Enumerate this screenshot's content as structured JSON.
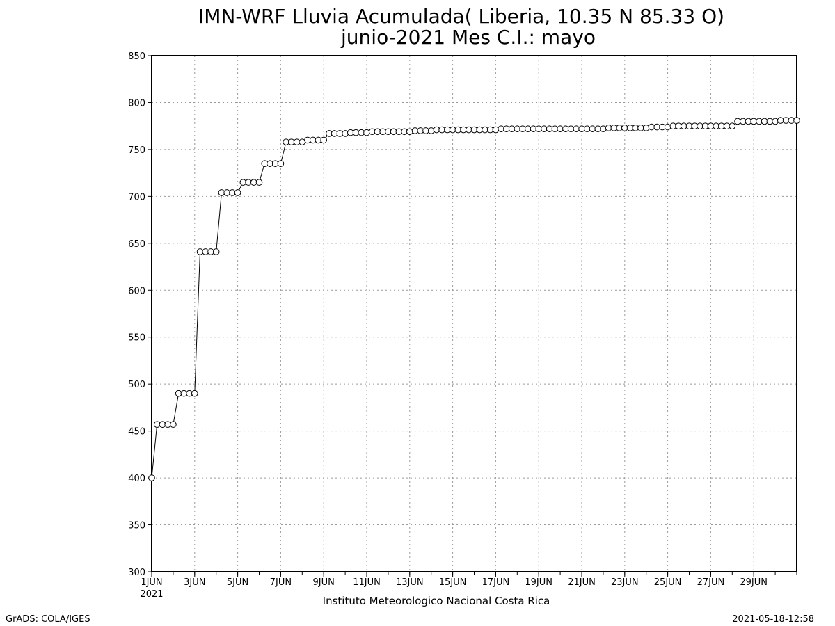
{
  "chart_data": {
    "type": "line",
    "title": "IMN-WRF  Lluvia Acumulada( Liberia, 10.35  N 85.33  O)",
    "subtitle": "junio-2021 Mes C.I.: mayo",
    "xlabel": "",
    "ylabel": "",
    "x_start_label": "1JUN",
    "x_year_label": "2021",
    "x_tick_labels": [
      "1JUN",
      "3JUN",
      "5JUN",
      "7JUN",
      "9JUN",
      "11JUN",
      "13JUN",
      "15JUN",
      "17JUN",
      "19JUN",
      "21JUN",
      "23JUN",
      "25JUN",
      "27JUN",
      "29JUN"
    ],
    "xlim": [
      "2021-06-01 00:00",
      "2021-06-30 24:00"
    ],
    "ylim": [
      300,
      850
    ],
    "y_ticks": [
      300,
      350,
      400,
      450,
      500,
      550,
      600,
      650,
      700,
      750,
      800,
      850
    ],
    "grid": true,
    "marker": "open-circle",
    "series": [
      {
        "x": [
          "2021-06-01 00:00",
          "2021-06-01 06:00",
          "2021-06-01 12:00",
          "2021-06-01 18:00",
          "2021-06-02 00:00",
          "2021-06-02 06:00",
          "2021-06-02 12:00",
          "2021-06-02 18:00",
          "2021-06-03 00:00",
          "2021-06-03 06:00",
          "2021-06-03 12:00",
          "2021-06-03 18:00",
          "2021-06-04 00:00",
          "2021-06-04 06:00",
          "2021-06-04 12:00",
          "2021-06-04 18:00",
          "2021-06-05 00:00",
          "2021-06-05 06:00",
          "2021-06-05 12:00",
          "2021-06-05 18:00",
          "2021-06-06 00:00",
          "2021-06-06 06:00",
          "2021-06-06 12:00",
          "2021-06-06 18:00",
          "2021-06-07 00:00",
          "2021-06-07 06:00",
          "2021-06-07 12:00",
          "2021-06-07 18:00",
          "2021-06-08 00:00",
          "2021-06-08 06:00",
          "2021-06-08 12:00",
          "2021-06-08 18:00",
          "2021-06-09 00:00",
          "2021-06-09 06:00",
          "2021-06-09 12:00",
          "2021-06-09 18:00",
          "2021-06-10 00:00",
          "2021-06-10 06:00",
          "2021-06-10 12:00",
          "2021-06-10 18:00",
          "2021-06-11 00:00",
          "2021-06-11 06:00",
          "2021-06-11 12:00",
          "2021-06-11 18:00",
          "2021-06-12 00:00",
          "2021-06-12 06:00",
          "2021-06-12 12:00",
          "2021-06-12 18:00",
          "2021-06-13 00:00",
          "2021-06-13 06:00",
          "2021-06-13 12:00",
          "2021-06-13 18:00",
          "2021-06-14 00:00",
          "2021-06-14 06:00",
          "2021-06-14 12:00",
          "2021-06-14 18:00",
          "2021-06-15 00:00",
          "2021-06-15 06:00",
          "2021-06-15 12:00",
          "2021-06-15 18:00",
          "2021-06-16 00:00",
          "2021-06-16 06:00",
          "2021-06-16 12:00",
          "2021-06-16 18:00",
          "2021-06-17 00:00",
          "2021-06-17 06:00",
          "2021-06-17 12:00",
          "2021-06-17 18:00",
          "2021-06-18 00:00",
          "2021-06-18 06:00",
          "2021-06-18 12:00",
          "2021-06-18 18:00",
          "2021-06-19 00:00",
          "2021-06-19 06:00",
          "2021-06-19 12:00",
          "2021-06-19 18:00",
          "2021-06-20 00:00",
          "2021-06-20 06:00",
          "2021-06-20 12:00",
          "2021-06-20 18:00",
          "2021-06-21 00:00",
          "2021-06-21 06:00",
          "2021-06-21 12:00",
          "2021-06-21 18:00",
          "2021-06-22 00:00",
          "2021-06-22 06:00",
          "2021-06-22 12:00",
          "2021-06-22 18:00",
          "2021-06-23 00:00",
          "2021-06-23 06:00",
          "2021-06-23 12:00",
          "2021-06-23 18:00",
          "2021-06-24 00:00",
          "2021-06-24 06:00",
          "2021-06-24 12:00",
          "2021-06-24 18:00",
          "2021-06-25 00:00",
          "2021-06-25 06:00",
          "2021-06-25 12:00",
          "2021-06-25 18:00",
          "2021-06-26 00:00",
          "2021-06-26 06:00",
          "2021-06-26 12:00",
          "2021-06-26 18:00",
          "2021-06-27 00:00",
          "2021-06-27 06:00",
          "2021-06-27 12:00",
          "2021-06-27 18:00",
          "2021-06-28 00:00",
          "2021-06-28 06:00",
          "2021-06-28 12:00",
          "2021-06-28 18:00",
          "2021-06-29 00:00",
          "2021-06-29 06:00",
          "2021-06-29 12:00",
          "2021-06-29 18:00",
          "2021-06-30 00:00",
          "2021-06-30 06:00",
          "2021-06-30 12:00",
          "2021-06-30 18:00",
          "2021-06-30 24:00"
        ],
        "values": [
          400,
          457,
          457,
          457,
          457,
          490,
          490,
          490,
          490,
          641,
          641,
          641,
          641,
          704,
          704,
          704,
          704,
          715,
          715,
          715,
          715,
          735,
          735,
          735,
          735,
          758,
          758,
          758,
          758,
          760,
          760,
          760,
          760,
          767,
          767,
          767,
          767,
          768,
          768,
          768,
          768,
          769,
          769,
          769,
          769,
          769,
          769,
          769,
          769,
          770,
          770,
          770,
          770,
          771,
          771,
          771,
          771,
          771,
          771,
          771,
          771,
          771,
          771,
          771,
          771,
          772,
          772,
          772,
          772,
          772,
          772,
          772,
          772,
          772,
          772,
          772,
          772,
          772,
          772,
          772,
          772,
          772,
          772,
          772,
          772,
          773,
          773,
          773,
          773,
          773,
          773,
          773,
          773,
          774,
          774,
          774,
          774,
          775,
          775,
          775,
          775,
          775,
          775,
          775,
          775,
          775,
          775,
          775,
          775,
          780,
          780,
          780,
          780,
          780,
          780,
          780,
          780,
          781,
          781,
          781,
          781
        ]
      }
    ]
  },
  "footer": {
    "credit": "Instituto Meteorologico Nacional Costa Rica",
    "software": "GrADS: COLA/IGES",
    "timestamp": "2021-05-18-12:58"
  }
}
